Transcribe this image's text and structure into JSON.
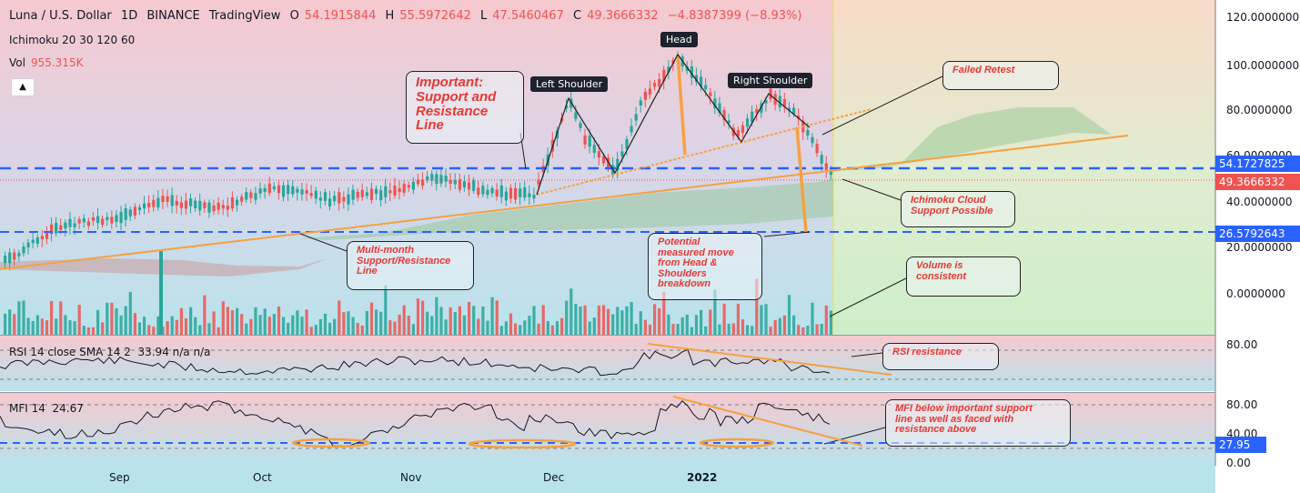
{
  "header": {
    "symbol": "Luna / U.S. Dollar",
    "interval": "1D",
    "exchange": "BINANCE",
    "platform": "TradingView",
    "ohlc": {
      "o_label": "O",
      "o": "54.1915844",
      "h_label": "H",
      "h": "55.5972642",
      "l_label": "L",
      "l": "47.5460467",
      "c_label": "C",
      "c": "49.3666332",
      "change": "−4.8387399 (−8.93%)"
    },
    "indicator": "Ichimoku 20 30 120 60",
    "vol_label": "Vol",
    "vol_value": "955.315K",
    "collapse_icon": "chevron-up-icon"
  },
  "price_axis": {
    "labels": [
      "120.0000000",
      "100.0000000",
      "80.0000000",
      "60.0000000",
      "40.0000000",
      "20.0000000",
      "0.0000000"
    ],
    "tags": {
      "resistance": "54.1727825",
      "last_price": "49.3666332",
      "support": "26.5792643"
    }
  },
  "rsi": {
    "legend": "RSI 14 close SMA 14 2",
    "values": "33.94  n/a  n/a",
    "axis": [
      "80.00"
    ]
  },
  "mfi": {
    "legend": "MFI 14",
    "value": "24.67",
    "axis": [
      "80.00",
      "40.00",
      "0.00"
    ],
    "tag": "27.95"
  },
  "time_axis": [
    "Sep",
    "Oct",
    "Nov",
    "Dec",
    "2022"
  ],
  "annotations": {
    "important": "Important:\nSupport and\nResistance\nLine",
    "left_shoulder": "Left Shoulder",
    "head": "Head",
    "right_shoulder": "Right Shoulder",
    "failed_retest": "Failed Retest",
    "ichimoku": "Ichimoku Cloud\nSupport Possible",
    "measured": "Potential\nmeasured move\nfrom Head &\nShoulders\nbreakdown",
    "multi_month": "Multi-month\nSupport/Resistance\nLine",
    "volume": "Volume is\nconsistent",
    "rsi_resistance": "RSI resistance",
    "mfi_note": "MFI below important support\nline as well as faced with\nresistance above"
  },
  "colors": {
    "up": "#26a69a",
    "down": "#ef5350",
    "orange": "#f5a142",
    "blue_dash": "#2962ff",
    "cloud": "#8bc38b",
    "annotation_text": "#e53935"
  }
}
